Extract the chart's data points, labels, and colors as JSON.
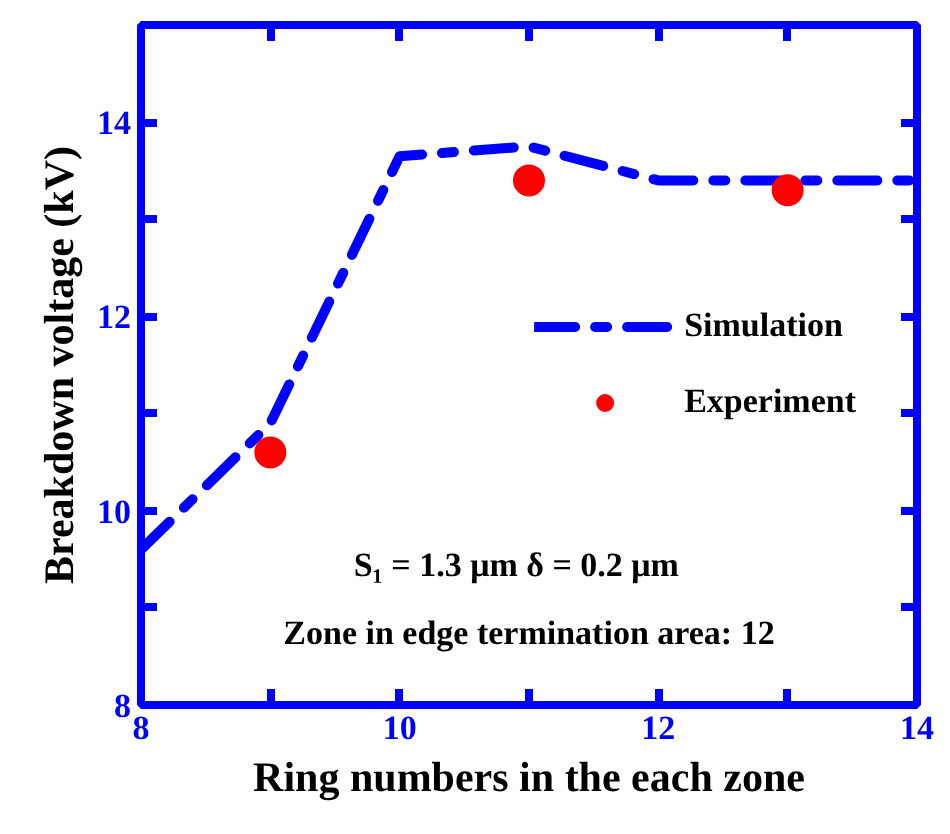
{
  "chart_data": {
    "type": "line",
    "xlabel": "Ring numbers in the each zone",
    "ylabel": "Breakdown voltage (kV)",
    "xlim": [
      8,
      14
    ],
    "ylim": [
      8,
      15
    ],
    "xticks": [
      8,
      {
        "value": 9,
        "label": null
      },
      10,
      {
        "value": 11,
        "label": null
      },
      12,
      {
        "value": 13,
        "label": null
      },
      14
    ],
    "yticks": [
      8,
      {
        "value": 9,
        "label": null
      },
      10,
      {
        "value": 11,
        "label": null
      },
      12,
      {
        "value": 13,
        "label": null
      },
      14
    ],
    "series": [
      {
        "name": "Simulation",
        "color": "#0000ff",
        "line_style": "dashdot",
        "x": [
          8,
          9,
          10,
          11,
          12,
          13,
          14
        ],
        "values": [
          9.6,
          10.9,
          13.65,
          13.75,
          13.4,
          13.4,
          13.4
        ]
      },
      {
        "name": "Experiment",
        "type": "scatter",
        "color": "#ff0000",
        "marker": "circle",
        "x": [
          9,
          11,
          13
        ],
        "values": [
          10.6,
          13.4,
          13.3
        ]
      }
    ],
    "annotations": [
      "S₁ = 1.3 μm    δ = 0.2 μm",
      "Zone in edge termination area: 12"
    ],
    "legend": "right",
    "grid": false
  }
}
